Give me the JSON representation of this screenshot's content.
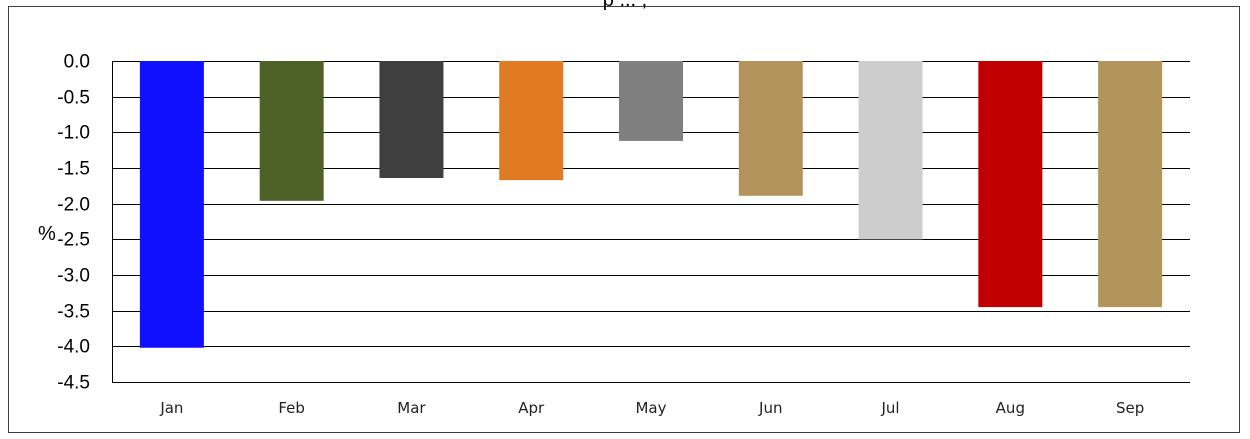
{
  "chart_data": {
    "type": "bar",
    "title": "p ... ,",
    "xlabel": "",
    "ylabel": "%",
    "ylim": [
      -4.5,
      0.0
    ],
    "yticks": [
      "0.0",
      "-0.5",
      "-1.0",
      "-1.5",
      "-2.0",
      "-2.5",
      "-3.0",
      "-3.5",
      "-4.0",
      "-4.5"
    ],
    "yticks_values": [
      0.0,
      -0.5,
      -1.0,
      -1.5,
      -2.0,
      -2.5,
      -3.0,
      -3.5,
      -4.0,
      -4.5
    ],
    "grid": true,
    "categories": [
      "Jan",
      "Feb",
      "Mar",
      "Apr",
      "May",
      "Jun",
      "Jul",
      "Aug",
      "Sep"
    ],
    "values": [
      -4.02,
      -1.96,
      -1.64,
      -1.67,
      -1.12,
      -1.89,
      -2.5,
      -3.45,
      -3.45
    ],
    "colors": [
      "#1010ff",
      "#4e6228",
      "#3f3f3f",
      "#e07b24",
      "#7f7f7f",
      "#b3955b",
      "#cdcdcd",
      "#c00000",
      "#b3955b"
    ]
  }
}
